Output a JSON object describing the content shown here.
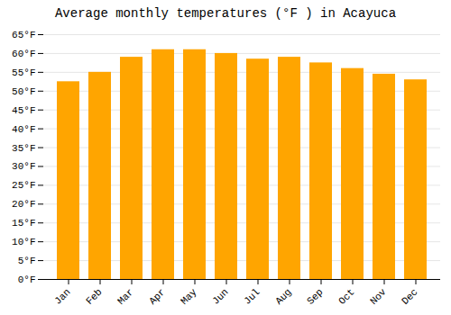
{
  "chart_data": {
    "type": "bar",
    "title": "Average monthly temperatures (°F ) in Acayuca",
    "categories": [
      "Jan",
      "Feb",
      "Mar",
      "Apr",
      "May",
      "Jun",
      "Jul",
      "Aug",
      "Sep",
      "Oct",
      "Nov",
      "Dec"
    ],
    "values": [
      52.5,
      55.0,
      59.0,
      61.0,
      61.0,
      60.0,
      58.5,
      59.0,
      57.5,
      56.0,
      54.5,
      53.0
    ],
    "color": "#FFA500",
    "ylim": [
      0,
      65
    ],
    "yticks": [
      {
        "value": 0,
        "label": "0°F"
      },
      {
        "value": 5,
        "label": "5°F"
      },
      {
        "value": 10,
        "label": "10°F"
      },
      {
        "value": 15,
        "label": "15°F"
      },
      {
        "value": 20,
        "label": "20°F"
      },
      {
        "value": 25,
        "label": "25°F"
      },
      {
        "value": 30,
        "label": "30°F"
      },
      {
        "value": 35,
        "label": "35°F"
      },
      {
        "value": 40,
        "label": "40°F"
      },
      {
        "value": 45,
        "label": "45°F"
      },
      {
        "value": 50,
        "label": "50°F"
      },
      {
        "value": 55,
        "label": "55°F"
      },
      {
        "value": 60,
        "label": "60°F"
      },
      {
        "value": 65,
        "label": "65°F"
      }
    ],
    "grid": true
  }
}
